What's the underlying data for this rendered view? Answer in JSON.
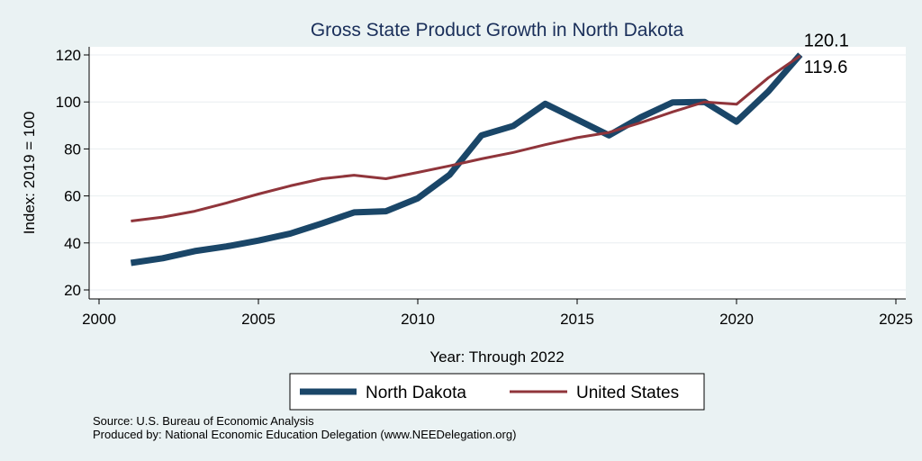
{
  "chart_data": {
    "type": "line",
    "title": "Gross State Product Growth in North Dakota",
    "xlabel": "Year: Through 2022",
    "ylabel": "Index: 2019 = 100",
    "xlim": [
      2000,
      2025
    ],
    "ylim": [
      20,
      120
    ],
    "x_ticks": [
      2000,
      2005,
      2010,
      2015,
      2020,
      2025
    ],
    "y_ticks": [
      20,
      40,
      60,
      80,
      100,
      120
    ],
    "grid": true,
    "legend_position": "bottom",
    "x": [
      2001,
      2002,
      2003,
      2004,
      2005,
      2006,
      2007,
      2008,
      2009,
      2010,
      2011,
      2012,
      2013,
      2014,
      2015,
      2016,
      2017,
      2018,
      2019,
      2020,
      2021,
      2022
    ],
    "series": [
      {
        "name": "North Dakota",
        "color": "#1a4668",
        "values": [
          31.5,
          33.5,
          36.5,
          38.5,
          41,
          44,
          48.3,
          53,
          53.5,
          59,
          69,
          85.8,
          89.8,
          99.2,
          92.5,
          85.8,
          93.5,
          99.8,
          100,
          91.6,
          104.5,
          120.1
        ],
        "end_label": "120.1"
      },
      {
        "name": "United States",
        "color": "#90353b",
        "values": [
          49.3,
          51,
          53.5,
          57,
          60.8,
          64.3,
          67.3,
          68.8,
          67.3,
          70,
          72.8,
          75.8,
          78.5,
          81.8,
          84.8,
          87,
          91.2,
          95.8,
          100,
          99,
          110.3,
          119.6
        ],
        "end_label": "119.6"
      }
    ],
    "notes": [
      "Source: U.S. Bureau of Economic Analysis",
      "Produced by: National Economic Education Delegation (www.NEEDelegation.org)"
    ]
  }
}
